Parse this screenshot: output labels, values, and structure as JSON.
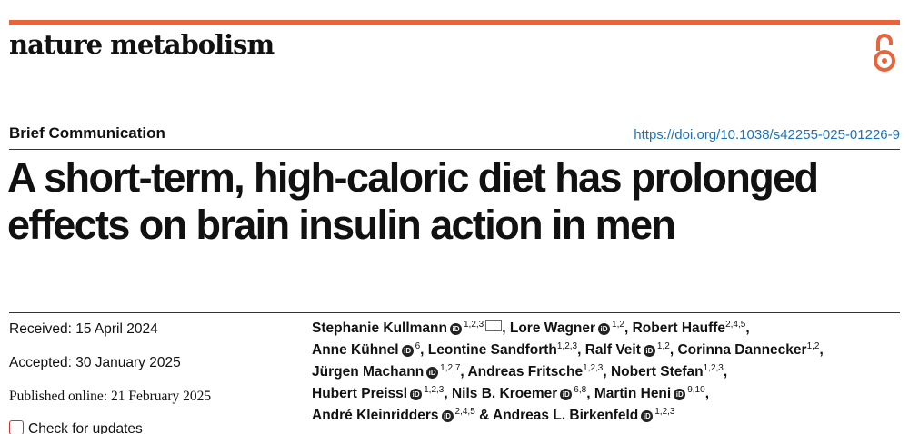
{
  "header": {
    "journal": "nature metabolism",
    "article_type": "Brief Communication",
    "doi": "https://doi.org/10.1038/s42255-025-01226-9"
  },
  "title": [
    "A short-term, high-caloric diet has prolonged",
    "effects on brain insulin action in men"
  ],
  "dates": {
    "received": "Received: 15 April 2024",
    "accepted": "Accepted: 30 January 2025",
    "published": "Published online: 21 February 2025",
    "updates": "Check for updates"
  },
  "author_lines": [
    [
      {
        "name": "Stephanie Kullmann",
        "orcid": true,
        "aff": "1,2,3",
        "corresponding": true,
        "sep": ", "
      },
      {
        "name": "Lore Wagner",
        "orcid": true,
        "aff": "1,2",
        "sep": ", "
      },
      {
        "name": "Robert Hauffe",
        "orcid": false,
        "aff": "2,4,5",
        "sep": ","
      }
    ],
    [
      {
        "name": "Anne Kühnel",
        "orcid": true,
        "aff": "6",
        "sep": ", "
      },
      {
        "name": "Leontine Sandforth",
        "orcid": false,
        "aff": "1,2,3",
        "sep": ", "
      },
      {
        "name": "Ralf Veit",
        "orcid": true,
        "aff": "1,2",
        "sep": ", "
      },
      {
        "name": "Corinna Dannecker",
        "orcid": false,
        "aff": "1,2",
        "sep": ","
      }
    ],
    [
      {
        "name": "Jürgen Machann",
        "orcid": true,
        "aff": "1,2,7",
        "sep": ", "
      },
      {
        "name": "Andreas Fritsche",
        "orcid": false,
        "aff": "1,2,3",
        "sep": ", "
      },
      {
        "name": "Nobert Stefan",
        "orcid": false,
        "aff": "1,2,3",
        "sep": ","
      }
    ],
    [
      {
        "name": "Hubert Preissl",
        "orcid": true,
        "aff": "1,2,3",
        "sep": ", "
      },
      {
        "name": "Nils B. Kroemer",
        "orcid": true,
        "aff": "6,8",
        "sep": ", "
      },
      {
        "name": "Martin Heni",
        "orcid": true,
        "aff": "9,10",
        "sep": ","
      }
    ],
    [
      {
        "name": "André Kleinridders",
        "orcid": true,
        "aff": "2,4,5",
        "sep": " & "
      },
      {
        "name": "Andreas L. Birkenfeld",
        "orcid": true,
        "aff": "1,2,3"
      }
    ]
  ]
}
